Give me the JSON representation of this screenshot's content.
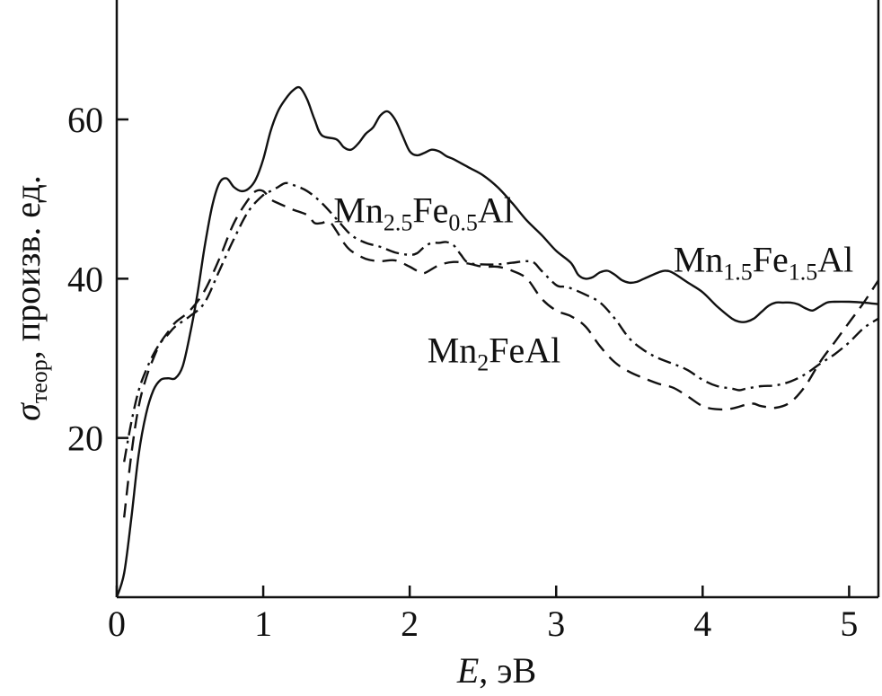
{
  "chart_data": {
    "type": "line",
    "title": "",
    "xlabel": {
      "italic": "E",
      "rest": ", эВ"
    },
    "ylabel": {
      "sigma": "σ",
      "sub": "теор",
      "rest": ", произв. ед."
    },
    "xlim": [
      0,
      5.2
    ],
    "ylim": [
      0,
      75
    ],
    "x_ticks": [
      "0",
      "1",
      "2",
      "3",
      "4",
      "5"
    ],
    "y_ticks": [
      "20",
      "40",
      "60"
    ],
    "grid": false,
    "legend": "none",
    "series": [
      {
        "name": "Mn1.5Fe1.5Al",
        "label_parts": [
          {
            "t": "Mn",
            "sub": false
          },
          {
            "t": "1.5",
            "sub": true
          },
          {
            "t": "Fe",
            "sub": false
          },
          {
            "t": "1.5",
            "sub": true
          },
          {
            "t": "Al",
            "sub": false
          }
        ],
        "style": "solid",
        "points": [
          [
            0,
            0
          ],
          [
            0.05,
            3
          ],
          [
            0.1,
            10
          ],
          [
            0.15,
            18
          ],
          [
            0.2,
            23
          ],
          [
            0.25,
            26
          ],
          [
            0.3,
            27.3
          ],
          [
            0.35,
            27.5
          ],
          [
            0.4,
            27.5
          ],
          [
            0.45,
            29
          ],
          [
            0.5,
            33
          ],
          [
            0.55,
            38
          ],
          [
            0.6,
            44
          ],
          [
            0.65,
            49
          ],
          [
            0.7,
            52
          ],
          [
            0.75,
            52.6
          ],
          [
            0.8,
            51.5
          ],
          [
            0.85,
            51
          ],
          [
            0.9,
            51.3
          ],
          [
            0.95,
            52.5
          ],
          [
            1.0,
            55
          ],
          [
            1.05,
            58.5
          ],
          [
            1.1,
            61
          ],
          [
            1.15,
            62.5
          ],
          [
            1.2,
            63.6
          ],
          [
            1.25,
            64
          ],
          [
            1.3,
            62.5
          ],
          [
            1.35,
            60
          ],
          [
            1.4,
            58
          ],
          [
            1.5,
            57.5
          ],
          [
            1.55,
            56.5
          ],
          [
            1.6,
            56.2
          ],
          [
            1.65,
            57
          ],
          [
            1.7,
            58.2
          ],
          [
            1.75,
            59
          ],
          [
            1.8,
            60.5
          ],
          [
            1.85,
            61
          ],
          [
            1.9,
            60
          ],
          [
            1.95,
            58
          ],
          [
            2.0,
            56
          ],
          [
            2.05,
            55.5
          ],
          [
            2.1,
            55.8
          ],
          [
            2.15,
            56.2
          ],
          [
            2.2,
            56
          ],
          [
            2.25,
            55.4
          ],
          [
            2.3,
            55
          ],
          [
            2.4,
            54
          ],
          [
            2.5,
            53
          ],
          [
            2.6,
            51.5
          ],
          [
            2.7,
            49.5
          ],
          [
            2.8,
            47.3
          ],
          [
            2.9,
            45.5
          ],
          [
            3.0,
            43.5
          ],
          [
            3.1,
            42
          ],
          [
            3.15,
            40.5
          ],
          [
            3.2,
            40
          ],
          [
            3.25,
            40.2
          ],
          [
            3.3,
            40.8
          ],
          [
            3.35,
            41
          ],
          [
            3.4,
            40.5
          ],
          [
            3.45,
            39.8
          ],
          [
            3.5,
            39.5
          ],
          [
            3.55,
            39.6
          ],
          [
            3.6,
            40
          ],
          [
            3.7,
            40.8
          ],
          [
            3.75,
            41
          ],
          [
            3.8,
            40.7
          ],
          [
            3.9,
            39.5
          ],
          [
            4.0,
            38.3
          ],
          [
            4.1,
            36.5
          ],
          [
            4.2,
            35
          ],
          [
            4.25,
            34.6
          ],
          [
            4.3,
            34.6
          ],
          [
            4.35,
            35
          ],
          [
            4.4,
            35.8
          ],
          [
            4.45,
            36.6
          ],
          [
            4.5,
            37
          ],
          [
            4.55,
            37
          ],
          [
            4.6,
            37
          ],
          [
            4.65,
            36.8
          ],
          [
            4.7,
            36.3
          ],
          [
            4.75,
            36
          ],
          [
            4.8,
            36.5
          ],
          [
            4.85,
            37
          ],
          [
            4.9,
            37.1
          ],
          [
            5.0,
            37.1
          ],
          [
            5.1,
            37
          ],
          [
            5.2,
            36.8
          ]
        ]
      },
      {
        "name": "Mn2.5Fe0.5Al",
        "label_parts": [
          {
            "t": "Mn",
            "sub": false
          },
          {
            "t": "2.5",
            "sub": true
          },
          {
            "t": "Fe",
            "sub": false
          },
          {
            "t": "0.5",
            "sub": true
          },
          {
            "t": "Al",
            "sub": false
          }
        ],
        "style": "dashdot",
        "points": [
          [
            0.05,
            17
          ],
          [
            0.1,
            22
          ],
          [
            0.15,
            26
          ],
          [
            0.2,
            28.5
          ],
          [
            0.25,
            30.5
          ],
          [
            0.3,
            32
          ],
          [
            0.35,
            33
          ],
          [
            0.4,
            34
          ],
          [
            0.5,
            35.3
          ],
          [
            0.6,
            37
          ],
          [
            0.7,
            41
          ],
          [
            0.8,
            45
          ],
          [
            0.9,
            48.5
          ],
          [
            1.0,
            50.5
          ],
          [
            1.05,
            51
          ],
          [
            1.1,
            51.5
          ],
          [
            1.15,
            52
          ],
          [
            1.2,
            51.8
          ],
          [
            1.3,
            51
          ],
          [
            1.4,
            49.5
          ],
          [
            1.5,
            47.5
          ],
          [
            1.6,
            45.5
          ],
          [
            1.7,
            44.5
          ],
          [
            1.8,
            44
          ],
          [
            1.9,
            43.3
          ],
          [
            2.0,
            43
          ],
          [
            2.05,
            43.2
          ],
          [
            2.1,
            44
          ],
          [
            2.15,
            44.5
          ],
          [
            2.2,
            44.5
          ],
          [
            2.25,
            44.6
          ],
          [
            2.3,
            44.2
          ],
          [
            2.35,
            43
          ],
          [
            2.4,
            42
          ],
          [
            2.5,
            41.8
          ],
          [
            2.6,
            41.8
          ],
          [
            2.7,
            42
          ],
          [
            2.8,
            42.2
          ],
          [
            2.85,
            42
          ],
          [
            2.9,
            41
          ],
          [
            3.0,
            39.2
          ],
          [
            3.05,
            39
          ],
          [
            3.1,
            38.8
          ],
          [
            3.2,
            38
          ],
          [
            3.3,
            37
          ],
          [
            3.4,
            35
          ],
          [
            3.5,
            32.5
          ],
          [
            3.6,
            31
          ],
          [
            3.7,
            30
          ],
          [
            3.8,
            29.3
          ],
          [
            3.9,
            28.5
          ],
          [
            4.0,
            27.3
          ],
          [
            4.1,
            26.5
          ],
          [
            4.2,
            26.2
          ],
          [
            4.25,
            26
          ],
          [
            4.3,
            26.2
          ],
          [
            4.4,
            26.5
          ],
          [
            4.5,
            26.6
          ],
          [
            4.6,
            27.1
          ],
          [
            4.7,
            28
          ],
          [
            4.8,
            29.3
          ],
          [
            4.9,
            30.5
          ],
          [
            5.0,
            32
          ],
          [
            5.1,
            33.8
          ],
          [
            5.2,
            35
          ]
        ]
      },
      {
        "name": "Mn2FeAl",
        "label_parts": [
          {
            "t": "Mn",
            "sub": false
          },
          {
            "t": "2",
            "sub": true
          },
          {
            "t": "FeAl",
            "sub": false
          }
        ],
        "style": "dashed",
        "points": [
          [
            0.05,
            10
          ],
          [
            0.1,
            18
          ],
          [
            0.15,
            24
          ],
          [
            0.2,
            27.5
          ],
          [
            0.25,
            30
          ],
          [
            0.3,
            32
          ],
          [
            0.35,
            33.3
          ],
          [
            0.4,
            34.5
          ],
          [
            0.5,
            36
          ],
          [
            0.6,
            38.5
          ],
          [
            0.7,
            42.5
          ],
          [
            0.8,
            47
          ],
          [
            0.9,
            50
          ],
          [
            0.95,
            51
          ],
          [
            1.0,
            51
          ],
          [
            1.05,
            50
          ],
          [
            1.1,
            49.5
          ],
          [
            1.2,
            48.7
          ],
          [
            1.3,
            48
          ],
          [
            1.35,
            47
          ],
          [
            1.4,
            47
          ],
          [
            1.45,
            47.2
          ],
          [
            1.5,
            46
          ],
          [
            1.55,
            44.5
          ],
          [
            1.6,
            43.5
          ],
          [
            1.7,
            42.5
          ],
          [
            1.8,
            42.2
          ],
          [
            1.9,
            42.3
          ],
          [
            2.0,
            41.5
          ],
          [
            2.05,
            41
          ],
          [
            2.1,
            40.7
          ],
          [
            2.2,
            41.7
          ],
          [
            2.3,
            42.1
          ],
          [
            2.4,
            41.9
          ],
          [
            2.5,
            41.5
          ],
          [
            2.6,
            41.5
          ],
          [
            2.7,
            41
          ],
          [
            2.8,
            40
          ],
          [
            2.9,
            37.5
          ],
          [
            3.0,
            36
          ],
          [
            3.1,
            35.3
          ],
          [
            3.2,
            34
          ],
          [
            3.3,
            31.5
          ],
          [
            3.4,
            29.5
          ],
          [
            3.5,
            28.3
          ],
          [
            3.6,
            27.5
          ],
          [
            3.7,
            26.8
          ],
          [
            3.8,
            26.3
          ],
          [
            3.9,
            25.2
          ],
          [
            4.0,
            24
          ],
          [
            4.1,
            23.6
          ],
          [
            4.2,
            23.7
          ],
          [
            4.3,
            24.2
          ],
          [
            4.35,
            24.3
          ],
          [
            4.4,
            24
          ],
          [
            4.5,
            23.8
          ],
          [
            4.6,
            24.5
          ],
          [
            4.7,
            26.5
          ],
          [
            4.8,
            29.5
          ],
          [
            4.9,
            32
          ],
          [
            5.0,
            34.5
          ],
          [
            5.1,
            37
          ],
          [
            5.2,
            39.8
          ]
        ]
      }
    ]
  }
}
